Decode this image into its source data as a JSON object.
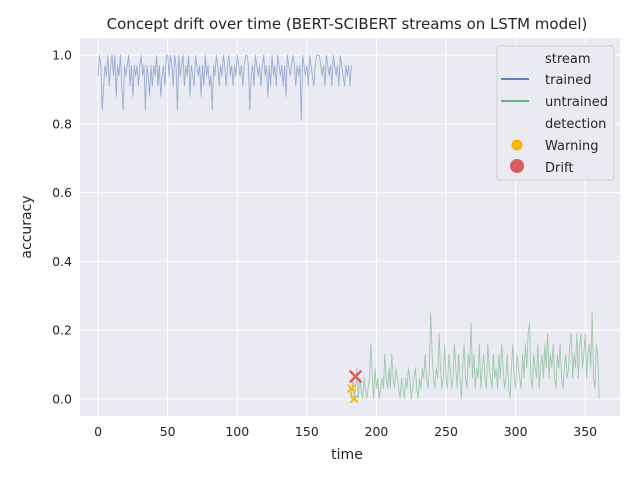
{
  "chart_data": {
    "type": "line",
    "title": "Concept drift over time (BERT-SCIBERT streams on LSTM model)",
    "xlabel": "time",
    "ylabel": "accuracy",
    "xlim": [
      -13,
      375
    ],
    "ylim": [
      -0.05,
      1.05
    ],
    "x_ticks": [
      0,
      50,
      100,
      150,
      200,
      250,
      300,
      350
    ],
    "y_ticks": [
      0.0,
      0.2,
      0.4,
      0.6,
      0.8,
      1.0
    ],
    "y_tick_labels": [
      "0.0",
      "0.2",
      "0.4",
      "0.6",
      "0.8",
      "1.0"
    ],
    "grid": true,
    "background_color": "#eaeaf2",
    "legend": {
      "placement": "top-right",
      "stream_header": "stream",
      "detection_header": "detection"
    },
    "series": [
      {
        "name": "trained",
        "color": "#4c72b0",
        "x_start": 0,
        "values": [
          0.94,
          1.0,
          0.97,
          0.84,
          0.91,
          0.97,
          0.94,
          1.0,
          0.91,
          0.97,
          1.0,
          0.94,
          1.0,
          0.88,
          0.97,
          0.94,
          1.0,
          0.91,
          0.84,
          0.97,
          0.94,
          0.97,
          1.0,
          0.91,
          0.97,
          0.88,
          0.97,
          0.94,
          0.97,
          0.91,
          0.97,
          1.0,
          0.94,
          0.97,
          0.84,
          0.97,
          0.94,
          0.88,
          0.97,
          0.91,
          0.97,
          0.94,
          1.0,
          0.91,
          0.97,
          0.88,
          0.94,
          0.97,
          0.91,
          1.0,
          1.0,
          0.94,
          1.0,
          0.97,
          0.91,
          1.0,
          0.97,
          0.84,
          1.0,
          0.94,
          0.97,
          1.0,
          0.91,
          0.97,
          0.94,
          1.0,
          0.88,
          0.97,
          0.94,
          0.91,
          1.0,
          0.97,
          0.94,
          0.97,
          0.88,
          0.97,
          0.91,
          1.0,
          0.94,
          0.97,
          0.91,
          0.94,
          0.84,
          0.97,
          0.94,
          1.0,
          0.97,
          0.91,
          0.97,
          0.94,
          1.0,
          0.97,
          0.91,
          0.97,
          1.0,
          0.94,
          0.97,
          0.91,
          0.97,
          0.94,
          1.0,
          0.97,
          0.94,
          0.97,
          0.91,
          0.97,
          1.0,
          1.0,
          0.97,
          0.84,
          0.94,
          0.97,
          0.91,
          1.0,
          0.97,
          0.94,
          0.97,
          0.91,
          0.97,
          1.0,
          0.94,
          0.97,
          0.88,
          0.97,
          0.91,
          1.0,
          0.94,
          0.97,
          0.91,
          1.0,
          0.97,
          0.94,
          0.97,
          0.91,
          0.97,
          0.88,
          1.0,
          0.97,
          0.94,
          0.97,
          1.0,
          0.97,
          0.91,
          0.97,
          0.94,
          0.97,
          0.81,
          1.0,
          0.97,
          0.94,
          0.97,
          0.91,
          1.0,
          0.97,
          0.94,
          0.91,
          0.97,
          1.0,
          1.0,
          1.0,
          0.97,
          0.94,
          0.97,
          0.91,
          1.0,
          0.97,
          0.94,
          0.97,
          0.91,
          1.0,
          0.97,
          0.94,
          0.97,
          0.91,
          1.0,
          0.97,
          0.94,
          0.91,
          0.97,
          0.94,
          0.97,
          0.91,
          0.97
        ]
      },
      {
        "name": "untrained",
        "color": "#55a868",
        "x_start": 181,
        "values": [
          0.03,
          0.0,
          0.06,
          0.0,
          0.03,
          0.09,
          0.0,
          0.06,
          0.03,
          0.0,
          0.06,
          0.03,
          0.0,
          0.03,
          0.06,
          0.16,
          0.06,
          0.0,
          0.09,
          0.03,
          0.06,
          0.0,
          0.03,
          0.06,
          0.03,
          0.13,
          0.06,
          0.03,
          0.09,
          0.03,
          0.13,
          0.06,
          0.03,
          0.09,
          0.06,
          0.03,
          0.0,
          0.06,
          0.03,
          0.0,
          0.06,
          0.03,
          0.09,
          0.06,
          0.0,
          0.03,
          0.06,
          0.09,
          0.03,
          0.0,
          0.06,
          0.03,
          0.09,
          0.06,
          0.13,
          0.06,
          0.03,
          0.09,
          0.25,
          0.13,
          0.06,
          0.03,
          0.09,
          0.06,
          0.19,
          0.09,
          0.03,
          0.06,
          0.16,
          0.06,
          0.03,
          0.13,
          0.09,
          0.03,
          0.06,
          0.16,
          0.09,
          0.03,
          0.13,
          0.06,
          0.0,
          0.09,
          0.16,
          0.06,
          0.03,
          0.13,
          0.09,
          0.22,
          0.06,
          0.13,
          0.03,
          0.09,
          0.06,
          0.16,
          0.03,
          0.09,
          0.13,
          0.06,
          0.03,
          0.16,
          0.09,
          0.06,
          0.03,
          0.13,
          0.06,
          0.09,
          0.03,
          0.13,
          0.06,
          0.16,
          0.09,
          0.03,
          0.06,
          0.13,
          0.03,
          0.0,
          0.09,
          0.16,
          0.06,
          0.03,
          0.13,
          0.09,
          0.06,
          0.03,
          0.13,
          0.06,
          0.16,
          0.09,
          0.19,
          0.22,
          0.06,
          0.03,
          0.13,
          0.09,
          0.06,
          0.16,
          0.03,
          0.09,
          0.13,
          0.06,
          0.16,
          0.09,
          0.19,
          0.06,
          0.13,
          0.09,
          0.16,
          0.06,
          0.03,
          0.13,
          0.09,
          0.16,
          0.06,
          0.03,
          0.09,
          0.13,
          0.06,
          0.09,
          0.16,
          0.19,
          0.06,
          0.13,
          0.09,
          0.19,
          0.06,
          0.16,
          0.19,
          0.09,
          0.13,
          0.19,
          0.06,
          0.13,
          0.16,
          0.09,
          0.25,
          0.06,
          0.03,
          0.16,
          0.13,
          0.0
        ]
      }
    ],
    "detections": [
      {
        "name": "Warning",
        "color": "#f5b800",
        "points": [
          {
            "x": 182,
            "y": 0.03
          },
          {
            "x": 184,
            "y": 0.0
          }
        ]
      },
      {
        "name": "Drift",
        "color": "#d65f5f",
        "points": [
          {
            "x": 185,
            "y": 0.065
          }
        ]
      }
    ]
  }
}
